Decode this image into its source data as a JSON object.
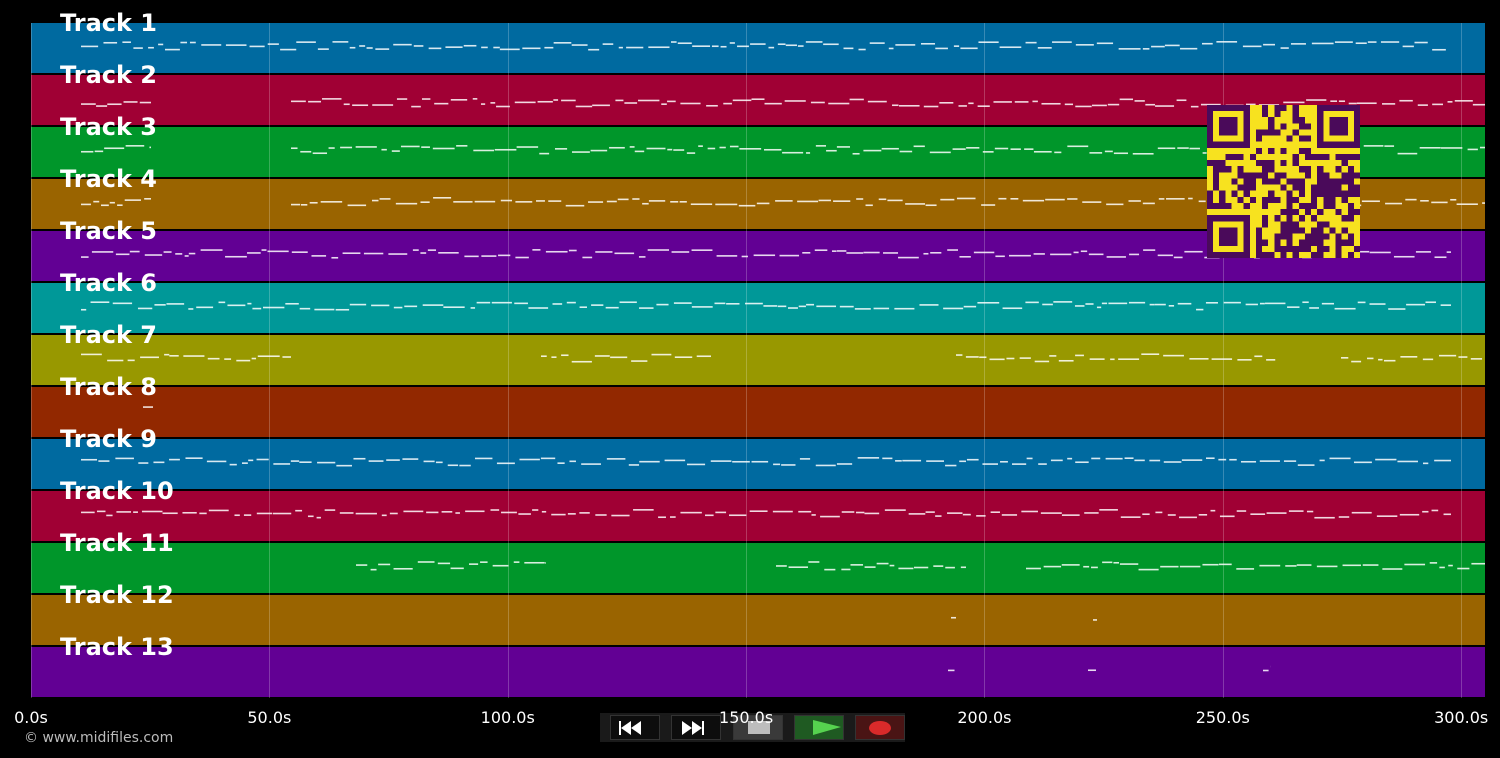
{
  "tracks": [
    {
      "name": "Track 1",
      "color": "#006aa0"
    },
    {
      "name": "Track 2",
      "color": "#a00034"
    },
    {
      "name": "Track 3",
      "color": "#00962a"
    },
    {
      "name": "Track 4",
      "color": "#9a6400"
    },
    {
      "name": "Track 5",
      "color": "#620094"
    },
    {
      "name": "Track 6",
      "color": "#009898"
    },
    {
      "name": "Track 7",
      "color": "#989800"
    },
    {
      "name": "Track 8",
      "color": "#922800"
    },
    {
      "name": "Track 9",
      "color": "#006aa0"
    },
    {
      "name": "Track 10",
      "color": "#a00034"
    },
    {
      "name": "Track 11",
      "color": "#00962a"
    },
    {
      "name": "Track 12",
      "color": "#9a6400"
    },
    {
      "name": "Track 13",
      "color": "#620094"
    }
  ],
  "x_axis": {
    "ticks": [
      "0.0s",
      "50.0s",
      "100.0s",
      "150.0s",
      "200.0s",
      "250.0s",
      "300.0s"
    ],
    "tick_values": [
      0,
      50,
      100,
      150,
      200,
      250,
      300
    ],
    "range": [
      0,
      305
    ]
  },
  "copyright": "© www.midifiles.com",
  "transport": {
    "rewind_icon": "rewind-icon",
    "fast_forward_icon": "fast-forward-icon",
    "stop_icon": "stop-icon",
    "play_icon": "play-icon",
    "record_icon": "record-icon"
  },
  "qr_icon": "qr-code-icon"
}
